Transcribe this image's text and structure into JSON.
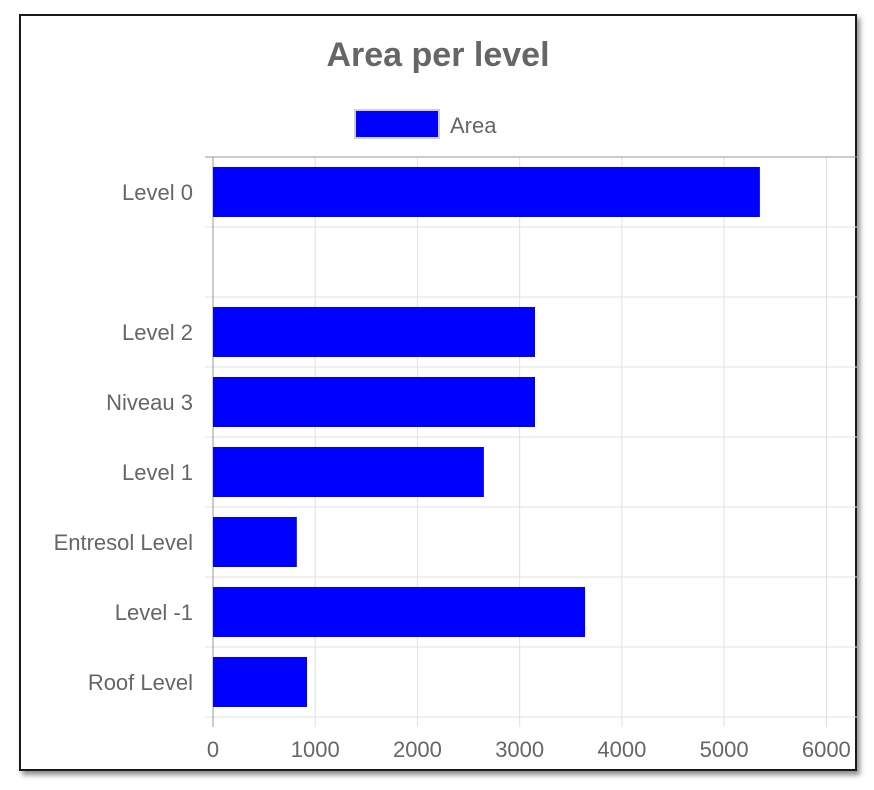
{
  "chart_data": {
    "type": "bar",
    "orientation": "horizontal",
    "title": "Area per level",
    "categories": [
      "Level 0",
      "",
      "Level 2",
      "Niveau 3",
      "Level 1",
      "Entresol Level",
      "Level -1",
      "Roof Level"
    ],
    "series": [
      {
        "name": "Area",
        "color": "#0000ff",
        "values": [
          5350,
          0,
          3150,
          3150,
          2650,
          820,
          3640,
          920
        ]
      }
    ],
    "xlabel": "",
    "ylabel": "",
    "xlim": [
      0,
      6300
    ],
    "xticks": [
      "0",
      "1000",
      "2000",
      "3000",
      "4000",
      "5000",
      "6000"
    ],
    "grid": true,
    "legend_position": "top"
  }
}
